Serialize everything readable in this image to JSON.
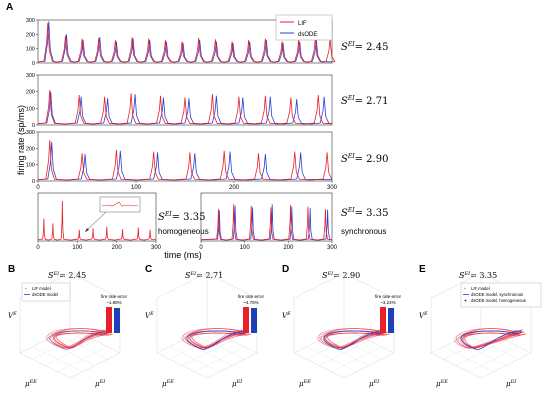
{
  "panel_letters": [
    "A",
    "B",
    "C",
    "D",
    "E"
  ],
  "panelA": {
    "ylabel": "firing rate (sp/ms)",
    "xlabel": "time (ms)",
    "legend": [
      "LIF",
      "dsODE"
    ],
    "rows": [
      {
        "s_label": "S",
        "s_sup": "EI",
        "s_value": "= 2.45"
      },
      {
        "s_label": "S",
        "s_sup": "EI",
        "s_value": "= 2.71"
      },
      {
        "s_label": "S",
        "s_sup": "EI",
        "s_value": "= 2.90"
      }
    ],
    "bottom_left": {
      "s_label": "S",
      "s_sup": "EI",
      "s_value": "= 3.35",
      "caption": "homogeneous"
    },
    "bottom_right": {
      "s_label": "S",
      "s_sup": "EI",
      "s_value": "= 3.35",
      "caption": "synchronous"
    }
  },
  "panels3d": [
    {
      "letter": "B",
      "title_s": "S",
      "title_sup": "EI",
      "title_value": "= 2.45",
      "legend": [
        "LIF model",
        "dsODE model"
      ],
      "bar_title": "fire rate error",
      "bar_value": "~1.88%"
    },
    {
      "letter": "C",
      "title_s": "S",
      "title_sup": "EI",
      "title_value": "= 2.71",
      "legend": [],
      "bar_title": "fire rate error",
      "bar_value": "~4.75%"
    },
    {
      "letter": "D",
      "title_s": "S",
      "title_sup": "EI",
      "title_value": "= 2.90",
      "legend": [],
      "bar_title": "fire rate error",
      "bar_value": "~3.24%"
    },
    {
      "letter": "E",
      "title_s": "S",
      "title_sup": "EI",
      "title_value": "= 3.35",
      "legend": [
        "LIF model",
        "dsODE model, synchronous",
        "dsODE model, homogeneous"
      ],
      "bar_title": "",
      "bar_value": ""
    }
  ],
  "axis3d": {
    "x_label": "μ",
    "x_sup": "EE",
    "y_label": "μ",
    "y_sup": "EI",
    "z_label": "V",
    "z_sup": "E"
  },
  "colors": {
    "lif": "#e8202a",
    "dsode": "#2a3fd6",
    "axis": "#333333",
    "grid": "#d8d8d8",
    "bar_red": "#e8202a",
    "bar_blue": "#1f3fb5"
  },
  "chart_data": [
    {
      "type": "line",
      "name_row": "2.45",
      "xlim": [
        0,
        300
      ],
      "ylim": [
        0,
        300
      ],
      "yticks": [
        0,
        100,
        200,
        300
      ],
      "series": [
        {
          "name": "LIF",
          "peaks_x": [
            10,
            28,
            45,
            62,
            79,
            96,
            113,
            130,
            147,
            164,
            181,
            198,
            215,
            232,
            249,
            266,
            283,
            298
          ],
          "peaks_y": [
            280,
            190,
            170,
            175,
            160,
            180,
            170,
            160,
            150,
            175,
            165,
            150,
            160,
            170,
            150,
            160,
            175,
            170
          ]
        },
        {
          "name": "dsODE",
          "peaks_x": [
            11,
            29,
            46,
            63,
            80,
            97,
            114,
            131,
            148,
            165,
            182,
            199,
            216,
            233,
            250,
            267,
            284
          ],
          "peaks_y": [
            290,
            200,
            160,
            180,
            150,
            170,
            160,
            150,
            140,
            160,
            150,
            140,
            150,
            160,
            140,
            150,
            160
          ]
        }
      ]
    },
    {
      "type": "line",
      "name_row": "2.71",
      "xlim": [
        0,
        300
      ],
      "ylim": [
        0,
        300
      ],
      "yticks": [
        0,
        100,
        200,
        300
      ],
      "series": [
        {
          "name": "LIF",
          "peaks_x": [
            12,
            42,
            68,
            95,
            125,
            150,
            178,
            205,
            232,
            258,
            286
          ],
          "peaks_y": [
            210,
            180,
            170,
            190,
            175,
            165,
            185,
            170,
            175,
            165,
            180
          ]
        },
        {
          "name": "dsODE",
          "peaks_x": [
            13,
            44,
            71,
            99,
            128,
            154,
            182,
            209,
            237,
            264,
            292
          ],
          "peaks_y": [
            200,
            170,
            160,
            185,
            165,
            160,
            175,
            165,
            170,
            155,
            170
          ]
        }
      ]
    },
    {
      "type": "line",
      "name_row": "2.90",
      "xlim": [
        0,
        300
      ],
      "ylim": [
        0,
        300
      ],
      "yticks": [
        0,
        100,
        200,
        300
      ],
      "xticks": [
        0,
        100,
        200,
        300
      ],
      "series": [
        {
          "name": "LIF",
          "peaks_x": [
            12,
            45,
            80,
            118,
            155,
            190,
            225,
            262,
            295
          ],
          "peaks_y": [
            250,
            170,
            190,
            180,
            175,
            185,
            170,
            180,
            175
          ]
        },
        {
          "name": "dsODE",
          "peaks_x": [
            14,
            48,
            84,
            122,
            160,
            196,
            232,
            268
          ],
          "peaks_y": [
            240,
            165,
            185,
            175,
            170,
            180,
            165,
            175
          ]
        }
      ]
    },
    {
      "type": "line",
      "name_row": "3.35 homogeneous",
      "xlim": [
        0,
        300
      ],
      "ylim": [
        0,
        300
      ],
      "xticks": [
        0,
        100,
        200,
        300
      ],
      "series": [
        {
          "name": "LIF",
          "peaks_x": [
            15,
            38,
            62,
            105,
            140,
            175,
            215,
            255,
            285
          ],
          "peaks_y": [
            140,
            110,
            250,
            70,
            80,
            90,
            75,
            85,
            70
          ]
        }
      ]
    },
    {
      "type": "line",
      "name_row": "3.35 synchronous",
      "xlim": [
        0,
        300
      ],
      "ylim": [
        0,
        300
      ],
      "xticks": [
        0,
        100,
        200,
        300
      ],
      "series": [
        {
          "name": "LIF",
          "peaks_x": [
            40,
            75,
            115,
            160,
            205,
            245,
            285
          ],
          "peaks_y": [
            200,
            230,
            220,
            210,
            225,
            215,
            200
          ]
        },
        {
          "name": "dsODE",
          "peaks_x": [
            42,
            78,
            118,
            163,
            208,
            250,
            290
          ],
          "peaks_y": [
            190,
            220,
            210,
            230,
            215,
            205,
            195
          ]
        }
      ]
    }
  ]
}
